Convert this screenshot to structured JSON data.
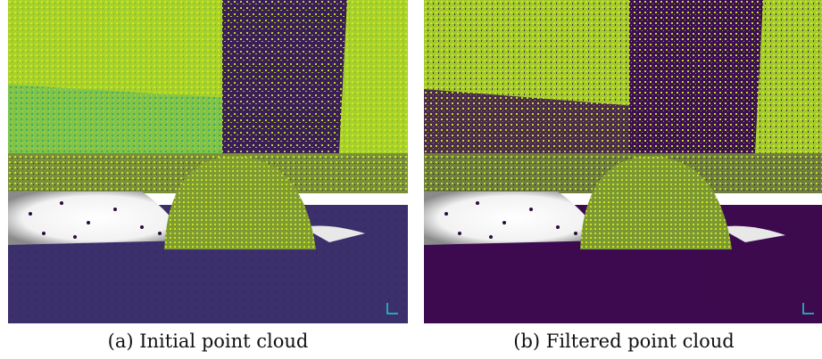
{
  "figures": [
    {
      "caption": "(a) Initial point cloud"
    },
    {
      "caption": "(b) Filtered point cloud"
    }
  ],
  "colors": {
    "ground_a": "#3b2f6c",
    "ground_b": "#3d0a50",
    "wall_yellow_green": "#b8d826",
    "wall_teal": "#2aa67f",
    "white_blob": "#ffffff",
    "dark_points": "#2a0d3d"
  }
}
